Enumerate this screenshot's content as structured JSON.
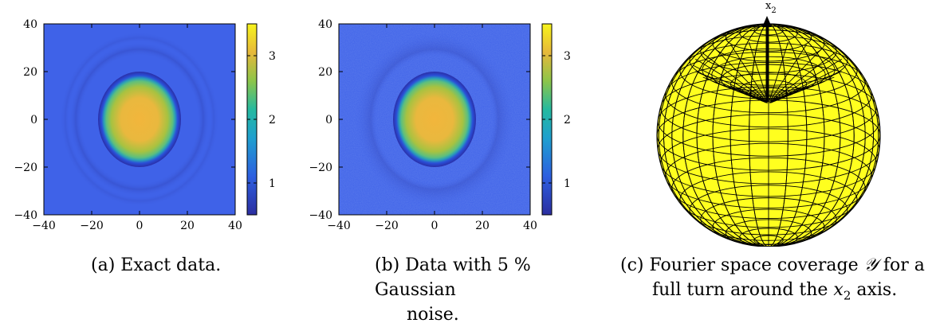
{
  "chart_data": [
    {
      "type": "heatmap",
      "panel": "a",
      "xlim": [
        -40,
        40
      ],
      "ylim": [
        -40,
        40
      ],
      "xticks": [
        "−40",
        "−20",
        "0",
        "20",
        "40"
      ],
      "yticks": [
        "40",
        "20",
        "0",
        "−20",
        "−40"
      ],
      "colorbar": {
        "range": [
          0.5,
          3.5
        ],
        "ticks": [
          "3",
          "2",
          "1"
        ],
        "tick_values": [
          3,
          2,
          1
        ]
      },
      "noise": false
    },
    {
      "type": "heatmap",
      "panel": "b",
      "xlim": [
        -40,
        40
      ],
      "ylim": [
        -40,
        40
      ],
      "xticks": [
        "−40",
        "−20",
        "0",
        "20",
        "40"
      ],
      "yticks": [
        "40",
        "20",
        "0",
        "−20",
        "−40"
      ],
      "colorbar": {
        "range": [
          0.5,
          3.5
        ],
        "ticks": [
          "3",
          "2",
          "1"
        ],
        "tick_values": [
          3,
          2,
          1
        ]
      },
      "noise": true
    }
  ],
  "figure3d": {
    "axis_label": "x",
    "axis_sub": "2",
    "surface_color": "#ffff1f"
  },
  "captions": {
    "a": {
      "label": "(a)",
      "text": "Exact data."
    },
    "b": {
      "label": "(b)",
      "line1": "Data with 5 % Gaussian",
      "line2": "noise."
    },
    "c": {
      "label": "(c)",
      "line1_pre": "Fourier space coverage ",
      "symbol": "𝒴",
      "line1_post": " for a",
      "line2_pre": "full turn around the ",
      "var": "x",
      "var_sub": "2",
      "line2_post": " axis."
    }
  }
}
